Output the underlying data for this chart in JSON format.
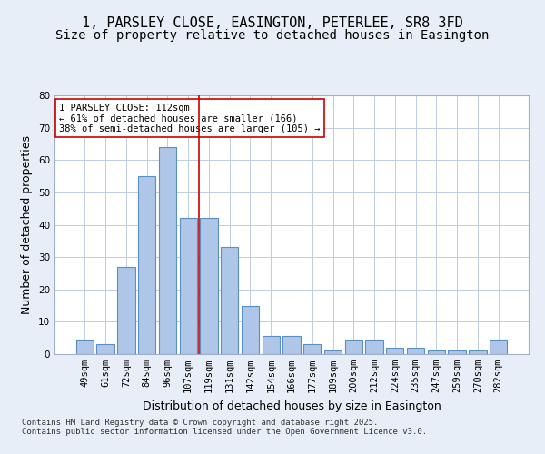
{
  "title1": "1, PARSLEY CLOSE, EASINGTON, PETERLEE, SR8 3FD",
  "title2": "Size of property relative to detached houses in Easington",
  "xlabel": "Distribution of detached houses by size in Easington",
  "ylabel": "Number of detached properties",
  "categories": [
    "49sqm",
    "61sqm",
    "72sqm",
    "84sqm",
    "96sqm",
    "107sqm",
    "119sqm",
    "131sqm",
    "142sqm",
    "154sqm",
    "166sqm",
    "177sqm",
    "189sqm",
    "200sqm",
    "212sqm",
    "224sqm",
    "235sqm",
    "247sqm",
    "259sqm",
    "270sqm",
    "282sqm"
  ],
  "values": [
    4.5,
    3.0,
    27.0,
    55.0,
    64.0,
    42.0,
    42.0,
    33.0,
    15.0,
    5.5,
    5.5,
    3.0,
    1.0,
    4.5,
    4.5,
    2.0,
    2.0,
    1.0,
    1.0,
    1.0,
    4.5
  ],
  "bar_color": "#aec6e8",
  "bar_edge_color": "#5a8fc0",
  "vline_x": 5.5,
  "vline_color": "#cc0000",
  "annotation_text": "1 PARSLEY CLOSE: 112sqm\n← 61% of detached houses are smaller (166)\n38% of semi-detached houses are larger (105) →",
  "annotation_box_color": "#ffffff",
  "annotation_box_edge": "#cc0000",
  "ylim": [
    0,
    80
  ],
  "yticks": [
    0,
    10,
    20,
    30,
    40,
    50,
    60,
    70,
    80
  ],
  "footer": "Contains HM Land Registry data © Crown copyright and database right 2025.\nContains public sector information licensed under the Open Government Licence v3.0.",
  "bg_color": "#e8eef7",
  "plot_bg_color": "#ffffff",
  "grid_color": "#c0cce0",
  "title_fontsize": 11,
  "axis_label_fontsize": 9,
  "tick_fontsize": 7.5,
  "annotation_fontsize": 7.5,
  "footer_fontsize": 6.5
}
